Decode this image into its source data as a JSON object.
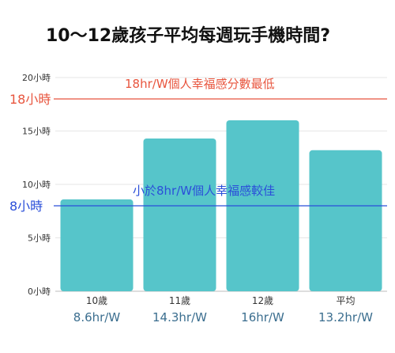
{
  "chart_data": {
    "type": "bar",
    "title": "10～12歲孩子平均每週玩手機時間?",
    "categories": [
      "10歲",
      "11歲",
      "12歲",
      "平均"
    ],
    "values": [
      8.6,
      14.3,
      16,
      13.2
    ],
    "value_labels": [
      "8.6hr/W",
      "14.3hr/W",
      "16hr/W",
      "13.2hr/W"
    ],
    "ylim": [
      0,
      20
    ],
    "yticks": [
      0,
      5,
      10,
      15,
      20
    ],
    "ytick_labels": [
      "0小時",
      "5小時",
      "10小時",
      "15小時",
      "20小時"
    ],
    "grid": true,
    "xlabel": "",
    "ylabel": "",
    "bar_color": "#56C5CA",
    "reference_lines": [
      {
        "value": 18,
        "axis_label": "18小時",
        "text": "18hr/W個人幸福感分數最低",
        "color": "#E8553E"
      },
      {
        "value": 8,
        "axis_label": "8小時",
        "text": "小於8hr/W個人幸福感較佳",
        "color": "#2B4FD9"
      }
    ]
  }
}
